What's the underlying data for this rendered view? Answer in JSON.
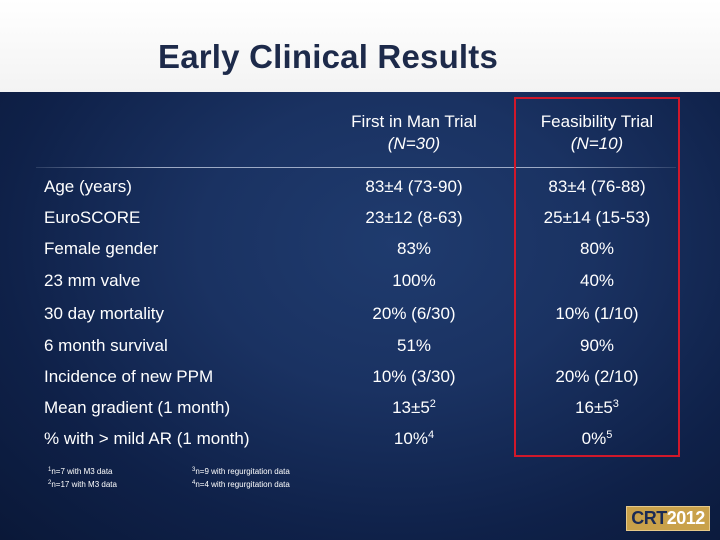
{
  "slide": {
    "title": "Early Clinical Results",
    "columns": [
      {
        "name": "First in Man Trial",
        "n": "(N=30)"
      },
      {
        "name": "Feasibility Trial",
        "n": "(N=10)"
      }
    ],
    "rows": [
      {
        "label": "Age (years)",
        "c1": "83±4 (73-90)",
        "c2": "83±4  (76-88)"
      },
      {
        "label": "EuroSCORE",
        "c1": "23±12 (8-63)",
        "c2": "25±14 (15-53)"
      },
      {
        "label": "Female gender",
        "c1": "83%",
        "c2": "80%"
      },
      {
        "label": "23 mm valve",
        "c1": "100%",
        "c2": "40%"
      },
      {
        "label": "30 day mortality",
        "c1": "20% (6/30)",
        "c2": "10% (1/10)"
      },
      {
        "label": "6 month survival",
        "c1": "51%",
        "c2": "90%"
      },
      {
        "label": "Incidence of new PPM",
        "c1": "10% (3/30)",
        "c2": "20% (2/10)"
      },
      {
        "label": "Mean gradient (1 month)",
        "c1": "13±5",
        "c1_sup": "2",
        "c2": "16±5",
        "c2_sup": "3"
      },
      {
        "label": "% with > mild AR (1 month)",
        "c1": "10%",
        "c1_sup": "4",
        "c2": "0%",
        "c2_sup": "5"
      }
    ],
    "footnotes": [
      {
        "num": "1",
        "text": "n=7 with M3 data"
      },
      {
        "num": "2",
        "text": "n=17 with M3 data"
      },
      {
        "num": "3",
        "text": "n=9 with regurgitation data"
      },
      {
        "num": "4",
        "text": "n=4 with regurgitation data"
      }
    ],
    "logo": {
      "part1": "CRT",
      "part2": "2012"
    },
    "colors": {
      "highlight": "#d0182a",
      "background": "#1a3262",
      "title": "#1d2a4a",
      "logo": "#c9a14a"
    }
  }
}
